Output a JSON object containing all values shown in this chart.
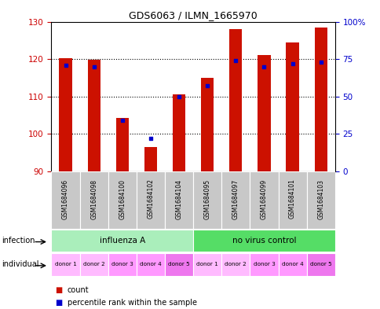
{
  "title": "GDS6063 / ILMN_1665970",
  "samples": [
    "GSM1684096",
    "GSM1684098",
    "GSM1684100",
    "GSM1684102",
    "GSM1684104",
    "GSM1684095",
    "GSM1684097",
    "GSM1684099",
    "GSM1684101",
    "GSM1684103"
  ],
  "counts": [
    120.2,
    119.8,
    104.2,
    96.5,
    110.5,
    115.0,
    128.0,
    121.0,
    124.5,
    128.5
  ],
  "percentiles": [
    71,
    70,
    34,
    22,
    50,
    57,
    74,
    70,
    72,
    73
  ],
  "ylim_left": [
    90,
    130
  ],
  "ylim_right": [
    0,
    100
  ],
  "yticks_left": [
    90,
    100,
    110,
    120,
    130
  ],
  "yticks_right": [
    0,
    25,
    50,
    75,
    100
  ],
  "yticklabels_right": [
    "0",
    "25",
    "50",
    "75",
    "100%"
  ],
  "bar_color": "#cc1100",
  "dot_color": "#0000cc",
  "bar_width": 0.45,
  "infection_groups": [
    {
      "label": "influenza A",
      "start": 0,
      "end": 5,
      "color": "#aaeebb"
    },
    {
      "label": "no virus control",
      "start": 5,
      "end": 10,
      "color": "#55dd66"
    }
  ],
  "individual_labels": [
    "donor 1",
    "donor 2",
    "donor 3",
    "donor 4",
    "donor 5",
    "donor 1",
    "donor 2",
    "donor 3",
    "donor 4",
    "donor 5"
  ],
  "individual_colors": [
    "#ffbbff",
    "#ffbbff",
    "#ff99ff",
    "#ff99ff",
    "#ee77ee",
    "#ffbbff",
    "#ffbbff",
    "#ff99ff",
    "#ff99ff",
    "#ee77ee"
  ],
  "legend_count_color": "#cc1100",
  "legend_dot_color": "#0000cc",
  "tick_label_color_left": "#cc0000",
  "tick_label_color_right": "#0000cc",
  "background_color": "#ffffff",
  "plot_bg": "#ffffff",
  "gsm_bg": "#c8c8c8"
}
